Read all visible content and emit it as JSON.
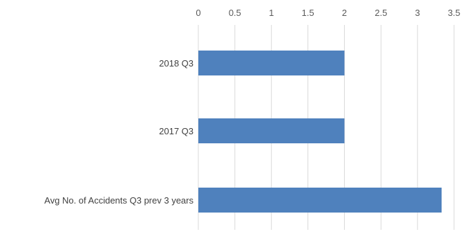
{
  "chart_data": {
    "type": "bar",
    "orientation": "horizontal",
    "axis_position": "top",
    "categories": [
      "2018 Q3",
      "2017 Q3",
      "Avg No. of Accidents Q3 prev 3 years"
    ],
    "values": [
      2,
      2,
      3.33
    ],
    "xlim": [
      0,
      3.5
    ],
    "ticks": [
      "0",
      "0.5",
      "1",
      "1.5",
      "2",
      "2.5",
      "3",
      "3.5"
    ],
    "title": "",
    "xlabel": "",
    "ylabel": "",
    "grid": true,
    "legend": "none",
    "bar_color": "#4f81bd"
  }
}
